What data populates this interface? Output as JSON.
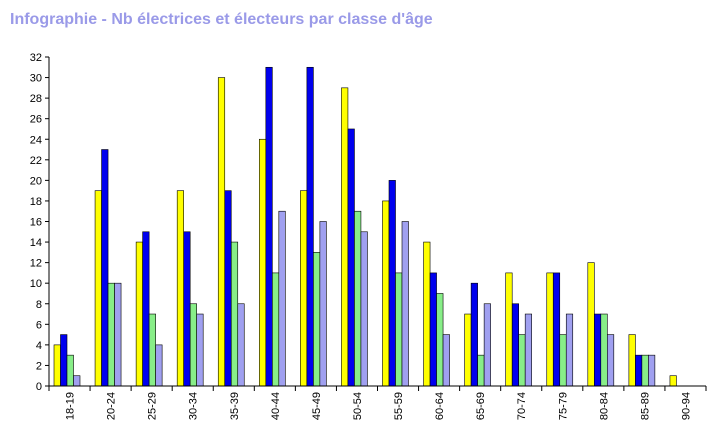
{
  "chart_data": {
    "type": "bar",
    "title": "Infographie - Nb électrices et électeurs par classe d'âge",
    "categories": [
      "18-19",
      "20-24",
      "25-29",
      "30-34",
      "35-39",
      "40-44",
      "45-49",
      "50-54",
      "55-59",
      "60-64",
      "65-69",
      "70-74",
      "75-79",
      "80-84",
      "85-89",
      "90-94"
    ],
    "series": [
      {
        "color": "#ffff00",
        "values": [
          4,
          19,
          14,
          19,
          30,
          24,
          19,
          29,
          18,
          14,
          7,
          11,
          11,
          12,
          5,
          1
        ]
      },
      {
        "color": "#0000ee",
        "values": [
          5,
          23,
          15,
          15,
          19,
          31,
          31,
          25,
          20,
          11,
          10,
          8,
          11,
          7,
          3,
          0
        ]
      },
      {
        "color": "#88ee88",
        "values": [
          3,
          10,
          7,
          8,
          14,
          11,
          13,
          17,
          11,
          9,
          3,
          5,
          5,
          7,
          3,
          0
        ]
      },
      {
        "color": "#a0a0f0",
        "values": [
          1,
          10,
          4,
          7,
          8,
          17,
          16,
          15,
          16,
          5,
          8,
          7,
          7,
          5,
          3,
          0
        ]
      }
    ],
    "ylim": [
      0,
      32
    ],
    "yticks": [
      0,
      2,
      4,
      6,
      8,
      10,
      12,
      14,
      16,
      18,
      20,
      22,
      24,
      26,
      28,
      30,
      32
    ],
    "xlabel": "",
    "ylabel": "",
    "grid": false,
    "legend": "none"
  }
}
